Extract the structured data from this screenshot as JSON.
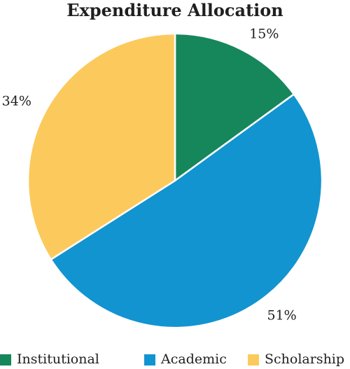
{
  "chart_data": {
    "type": "pie",
    "title": "Expenditure Allocation",
    "categories": [
      "Institutional",
      "Academic",
      "Scholarship"
    ],
    "values": [
      15,
      51,
      34
    ],
    "value_labels": [
      "15%",
      "51%",
      "34%"
    ],
    "colors": [
      "#16875a",
      "#1294d0",
      "#fcca5c"
    ],
    "start_angle_deg": 0,
    "direction": "clockwise",
    "legend_position": "bottom"
  }
}
